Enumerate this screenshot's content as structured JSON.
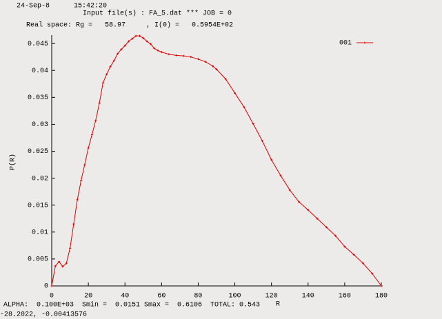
{
  "chart_data": {
    "type": "line",
    "annotations": [
      "24-Sep-8",
      "15:42:20",
      "Input file(s) : FA_5.dat *** JOB = 0",
      "Real space: Rg =   58.97     , I(0) =   0.5954E+02",
      "ALPHA:  0.100E+03  Smin =  0.0151 Smax =  0.6106  TOTAL: 0.543",
      "-28.2022, -0.00413576"
    ],
    "x_label": "R",
    "y_label": "P(R)",
    "x": [
      0,
      2,
      4,
      6,
      8,
      10,
      12,
      14,
      16,
      18,
      20,
      22,
      24,
      26,
      28,
      30,
      32,
      34,
      36,
      38,
      40,
      42,
      44,
      46,
      48,
      50,
      52,
      54,
      56,
      58,
      60,
      64,
      68,
      72,
      76,
      80,
      84,
      88,
      90,
      95,
      100,
      105,
      110,
      115,
      120,
      125,
      130,
      135,
      140,
      145,
      150,
      155,
      160,
      165,
      170,
      175,
      180
    ],
    "series": [
      {
        "name": "001",
        "color": "#dd0000",
        "values": [
          0,
          0.0037,
          0.0045,
          0.0036,
          0.0042,
          0.007,
          0.0115,
          0.016,
          0.0195,
          0.0225,
          0.0256,
          0.0281,
          0.0307,
          0.0339,
          0.0377,
          0.0393,
          0.0407,
          0.0418,
          0.0431,
          0.0439,
          0.0446,
          0.0454,
          0.0459,
          0.0464,
          0.0464,
          0.046,
          0.0454,
          0.0449,
          0.0441,
          0.0437,
          0.0434,
          0.043,
          0.0428,
          0.0427,
          0.0425,
          0.0421,
          0.0416,
          0.0408,
          0.0402,
          0.0384,
          0.0358,
          0.0332,
          0.0301,
          0.0269,
          0.0234,
          0.0205,
          0.0178,
          0.0156,
          0.0141,
          0.0125,
          0.0109,
          0.0093,
          0.0073,
          0.0058,
          0.0042,
          0.0023,
          0
        ]
      }
    ],
    "xlim": [
      0,
      180
    ],
    "ylim": [
      0,
      0.0465
    ],
    "xticks": [
      0,
      20,
      40,
      60,
      80,
      100,
      120,
      140,
      160,
      180
    ],
    "yticks": [
      0,
      0.005,
      0.01,
      0.015,
      0.02,
      0.025,
      0.03,
      0.035,
      0.04,
      0.045
    ],
    "legend": "upper right"
  }
}
